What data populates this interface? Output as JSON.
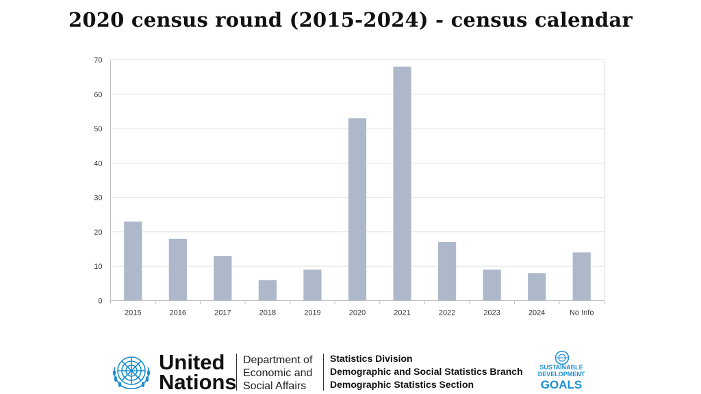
{
  "title": "2020 census round (2015-2024) - census calendar",
  "chart_data": {
    "type": "bar",
    "categories": [
      "2015",
      "2016",
      "2017",
      "2018",
      "2019",
      "2020",
      "2021",
      "2022",
      "2023",
      "2024",
      "No Info"
    ],
    "values": [
      23,
      18,
      13,
      6,
      9,
      53,
      68,
      17,
      9,
      8,
      14
    ],
    "title": "",
    "xlabel": "",
    "ylabel": "",
    "ylim": [
      0,
      70
    ],
    "yticks": [
      0,
      10,
      20,
      30,
      40,
      50,
      60,
      70
    ],
    "grid": true,
    "legend": "none",
    "bar_color": "#adb9ca"
  },
  "footer": {
    "un_line1": "United",
    "un_line2": "Nations",
    "desa_line1": "Department of",
    "desa_line2": "Economic and",
    "desa_line3": "Social Affairs",
    "sd_line1": "Statistics Division",
    "sd_line2": "Demographic and Social Statistics Branch",
    "sd_line3": "Demographic Statistics Section",
    "sdg_line1": "SUSTAINABLE",
    "sdg_line2": "DEVELOPMENT",
    "sdg_goals": "GOALS",
    "un_emblem_icon": "un-emblem-icon",
    "sdg_emblem_icon": "sdg-wheel-icon"
  }
}
